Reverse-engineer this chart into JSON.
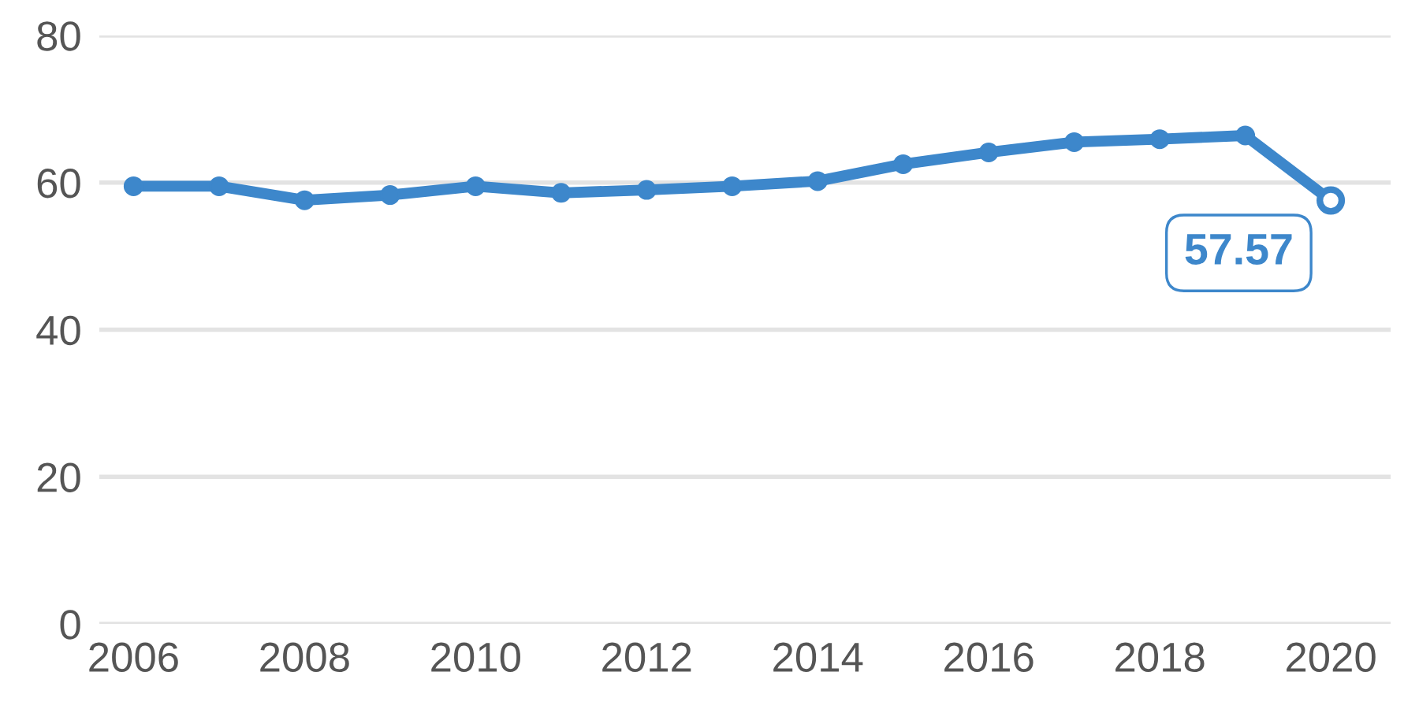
{
  "chart_data": {
    "type": "line",
    "x": [
      2006,
      2007,
      2008,
      2009,
      2010,
      2011,
      2012,
      2013,
      2014,
      2015,
      2016,
      2017,
      2018,
      2019,
      2020
    ],
    "series": [
      {
        "color": "#3d87cb",
        "values": [
          59.5,
          59.5,
          57.6,
          58.3,
          59.5,
          58.6,
          59.0,
          59.5,
          60.2,
          62.5,
          64.1,
          65.5,
          65.9,
          66.4,
          57.57
        ],
        "value_labels": [
          null,
          null,
          null,
          null,
          null,
          null,
          null,
          null,
          null,
          null,
          null,
          null,
          null,
          null,
          "57.57"
        ]
      }
    ],
    "xlim": [
      2005.6,
      2020.7
    ],
    "xticks": [
      2006,
      2008,
      2010,
      2012,
      2014,
      2016,
      2018,
      2020
    ],
    "ylim": [
      0,
      80
    ],
    "yticks": [
      0,
      20,
      40,
      60,
      80
    ],
    "grid": "y",
    "marker": "circle",
    "line_style": "solid"
  }
}
